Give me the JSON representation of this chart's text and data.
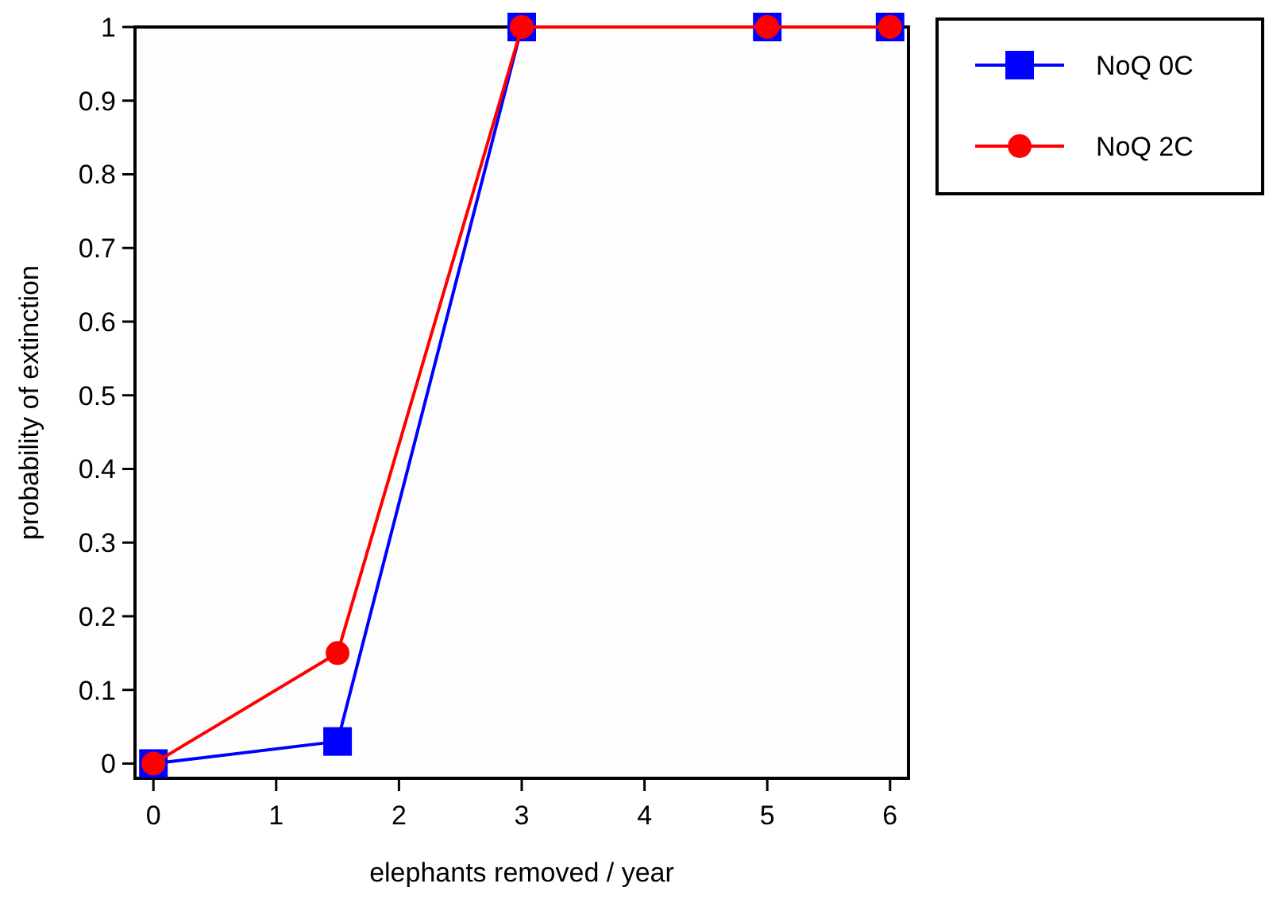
{
  "chart_data": {
    "type": "line",
    "xlabel": "elephants removed / year",
    "ylabel": "probability of extinction",
    "x": [
      0,
      1.5,
      3,
      5,
      6
    ],
    "series": [
      {
        "name": "NoQ 0C",
        "color": "#0000ff",
        "values": [
          0,
          0.03,
          1,
          1,
          1
        ],
        "marker": "square"
      },
      {
        "name": "NoQ 2C",
        "color": "#ff0000",
        "values": [
          0,
          0.15,
          1,
          1,
          1
        ],
        "marker": "circle"
      }
    ],
    "xlim": [
      -0.15,
      6.15
    ],
    "xticks": [
      0,
      1,
      2,
      3,
      4,
      5,
      6
    ],
    "ylim": [
      -0.02,
      1
    ],
    "yticks": [
      0,
      0.1,
      0.2,
      0.3,
      0.4,
      0.5,
      0.6,
      0.7,
      0.8,
      0.9,
      1
    ],
    "grid": false,
    "legend": "top right",
    "line_style": "solid"
  }
}
